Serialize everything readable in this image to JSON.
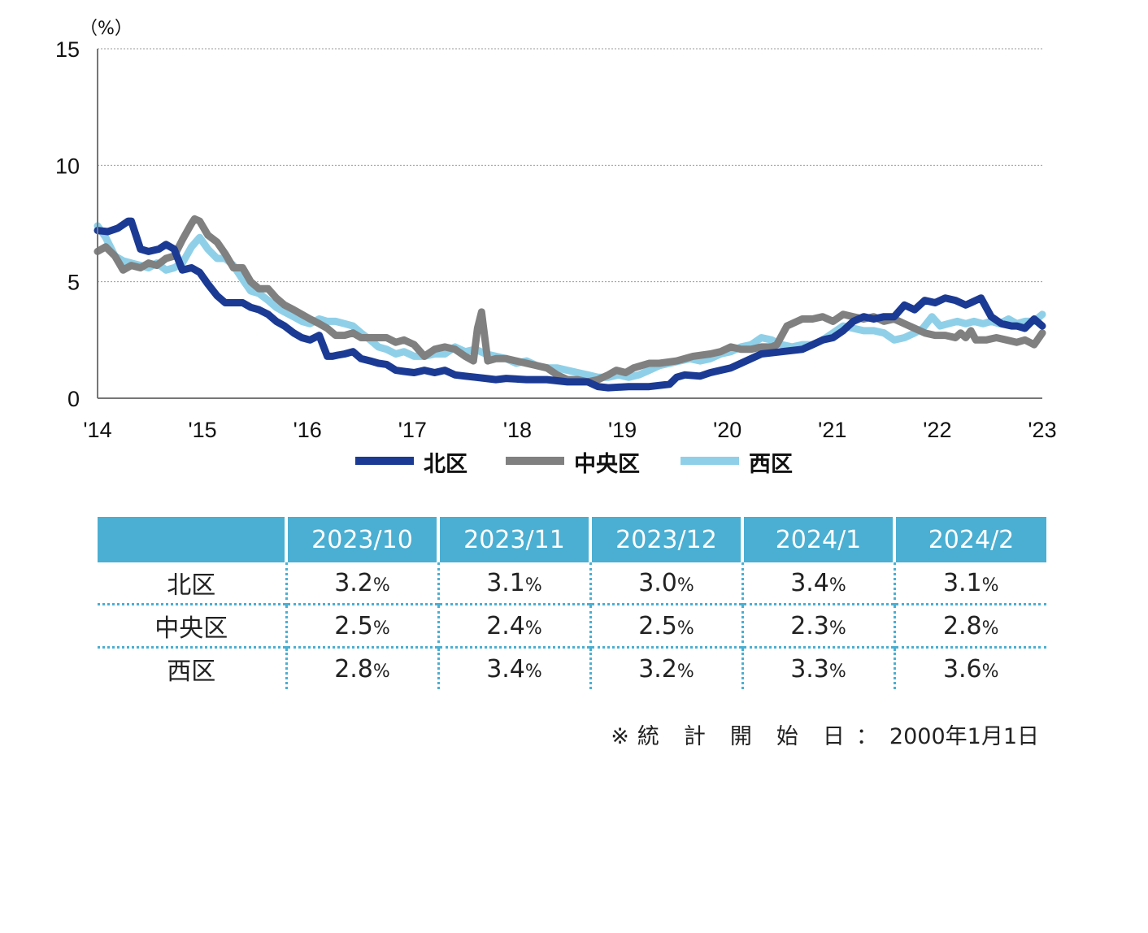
{
  "chart_data": {
    "type": "line",
    "title": "",
    "unit_label": "（%）",
    "ylim": [
      0,
      15
    ],
    "y_ticks": [
      0,
      5,
      10,
      15
    ],
    "x_tick_labels": [
      "'14",
      "'15",
      "'16",
      "'17",
      "'18",
      "'19",
      "'20",
      "'21",
      "'22",
      "'23"
    ],
    "x_start": 2014.0,
    "x_end": 2023.25,
    "gridlines": true,
    "legend_position": "bottom-center",
    "series": [
      {
        "name": "北区",
        "color": "#1b3a94",
        "x": [
          2014.0,
          2014.1,
          2014.2,
          2014.3,
          2014.33,
          2014.42,
          2014.5,
          2014.6,
          2014.67,
          2014.75,
          2014.83,
          2014.92,
          2015.0,
          2015.08,
          2015.17,
          2015.25,
          2015.33,
          2015.42,
          2015.5,
          2015.58,
          2015.67,
          2015.75,
          2015.83,
          2015.92,
          2016.0,
          2016.08,
          2016.17,
          2016.25,
          2016.3,
          2016.35,
          2016.42,
          2016.5,
          2016.58,
          2016.67,
          2016.75,
          2016.83,
          2016.92,
          2017.0,
          2017.1,
          2017.2,
          2017.3,
          2017.4,
          2017.5,
          2017.6,
          2017.7,
          2017.8,
          2017.9,
          2018.0,
          2018.2,
          2018.4,
          2018.6,
          2018.8,
          2018.9,
          2019.0,
          2019.2,
          2019.4,
          2019.6,
          2019.67,
          2019.75,
          2019.9,
          2020.0,
          2020.2,
          2020.3,
          2020.5,
          2020.7,
          2020.9,
          2021.0,
          2021.1,
          2021.2,
          2021.3,
          2021.4,
          2021.5,
          2021.6,
          2021.7,
          2021.8,
          2021.9,
          2022.0,
          2022.1,
          2022.2,
          2022.3,
          2022.4,
          2022.5,
          2022.55,
          2022.65,
          2022.75,
          2022.85,
          2022.95,
          2023.0,
          2023.08,
          2023.17,
          2023.25
        ],
        "values": [
          7.2,
          7.15,
          7.3,
          7.6,
          7.6,
          6.4,
          6.3,
          6.4,
          6.6,
          6.4,
          5.5,
          5.6,
          5.4,
          4.9,
          4.4,
          4.1,
          4.1,
          4.1,
          3.9,
          3.8,
          3.6,
          3.3,
          3.1,
          2.8,
          2.6,
          2.5,
          2.7,
          1.8,
          1.8,
          1.85,
          1.9,
          2.0,
          1.7,
          1.6,
          1.5,
          1.45,
          1.2,
          1.15,
          1.1,
          1.2,
          1.1,
          1.2,
          1.0,
          0.95,
          0.9,
          0.85,
          0.8,
          0.85,
          0.8,
          0.8,
          0.7,
          0.7,
          0.5,
          0.45,
          0.5,
          0.5,
          0.6,
          0.9,
          1.0,
          0.95,
          1.1,
          1.3,
          1.5,
          1.9,
          2.0,
          2.1,
          2.3,
          2.5,
          2.6,
          2.9,
          3.3,
          3.5,
          3.4,
          3.5,
          3.5,
          4.0,
          3.8,
          4.2,
          4.1,
          4.3,
          4.2,
          4.0,
          4.1,
          4.3,
          3.5,
          3.2,
          3.1,
          3.1,
          3.0,
          3.4,
          3.1
        ]
      },
      {
        "name": "中央区",
        "color": "#808080",
        "x": [
          2014.0,
          2014.08,
          2014.17,
          2014.25,
          2014.33,
          2014.42,
          2014.5,
          2014.58,
          2014.67,
          2014.75,
          2014.83,
          2014.92,
          2014.95,
          2015.0,
          2015.08,
          2015.17,
          2015.25,
          2015.33,
          2015.42,
          2015.5,
          2015.58,
          2015.67,
          2015.75,
          2015.83,
          2015.92,
          2016.0,
          2016.08,
          2016.17,
          2016.25,
          2016.33,
          2016.42,
          2016.5,
          2016.58,
          2016.67,
          2016.75,
          2016.83,
          2016.92,
          2017.0,
          2017.1,
          2017.2,
          2017.3,
          2017.4,
          2017.5,
          2017.6,
          2017.68,
          2017.72,
          2017.76,
          2017.82,
          2017.9,
          2018.0,
          2018.2,
          2018.3,
          2018.4,
          2018.5,
          2018.6,
          2018.7,
          2018.8,
          2018.9,
          2019.0,
          2019.08,
          2019.17,
          2019.25,
          2019.4,
          2019.5,
          2019.67,
          2019.83,
          2020.0,
          2020.1,
          2020.2,
          2020.3,
          2020.4,
          2020.5,
          2020.6,
          2020.65,
          2020.75,
          2020.9,
          2021.0,
          2021.1,
          2021.2,
          2021.3,
          2021.4,
          2021.5,
          2021.6,
          2021.7,
          2021.8,
          2021.9,
          2022.0,
          2022.1,
          2022.2,
          2022.3,
          2022.4,
          2022.45,
          2022.5,
          2022.55,
          2022.6,
          2022.7,
          2022.8,
          2022.9,
          2023.0,
          2023.08,
          2023.17,
          2023.25
        ],
        "values": [
          6.3,
          6.5,
          6.1,
          5.5,
          5.7,
          5.6,
          5.8,
          5.7,
          6.0,
          6.1,
          6.8,
          7.5,
          7.7,
          7.6,
          7.0,
          6.7,
          6.2,
          5.6,
          5.6,
          5.0,
          4.7,
          4.7,
          4.3,
          4.0,
          3.8,
          3.6,
          3.4,
          3.2,
          3.0,
          2.7,
          2.7,
          2.8,
          2.6,
          2.6,
          2.6,
          2.6,
          2.4,
          2.5,
          2.3,
          1.8,
          2.1,
          2.2,
          2.1,
          1.8,
          1.6,
          3.0,
          3.7,
          1.6,
          1.7,
          1.7,
          1.5,
          1.4,
          1.3,
          1.0,
          0.8,
          0.8,
          0.7,
          0.8,
          1.0,
          1.2,
          1.1,
          1.3,
          1.5,
          1.5,
          1.6,
          1.8,
          1.9,
          2.0,
          2.2,
          2.1,
          2.1,
          2.2,
          2.2,
          2.3,
          3.1,
          3.4,
          3.4,
          3.5,
          3.3,
          3.6,
          3.5,
          3.4,
          3.5,
          3.3,
          3.4,
          3.2,
          3.0,
          2.8,
          2.7,
          2.7,
          2.6,
          2.8,
          2.6,
          2.9,
          2.5,
          2.5,
          2.6,
          2.5,
          2.4,
          2.5,
          2.3,
          2.8
        ]
      },
      {
        "name": "西区",
        "color": "#8fd0e8",
        "x": [
          2014.0,
          2014.08,
          2014.17,
          2014.25,
          2014.33,
          2014.42,
          2014.5,
          2014.58,
          2014.67,
          2014.75,
          2014.83,
          2014.92,
          2015.0,
          2015.08,
          2015.17,
          2015.25,
          2015.33,
          2015.42,
          2015.5,
          2015.58,
          2015.67,
          2015.75,
          2015.83,
          2015.92,
          2016.0,
          2016.08,
          2016.17,
          2016.25,
          2016.33,
          2016.42,
          2016.5,
          2016.58,
          2016.67,
          2016.75,
          2016.83,
          2016.92,
          2017.0,
          2017.1,
          2017.2,
          2017.3,
          2017.4,
          2017.5,
          2017.6,
          2017.7,
          2017.8,
          2017.9,
          2018.0,
          2018.1,
          2018.2,
          2018.3,
          2018.4,
          2018.5,
          2018.6,
          2018.7,
          2018.8,
          2018.9,
          2019.0,
          2019.1,
          2019.2,
          2019.3,
          2019.4,
          2019.5,
          2019.6,
          2019.7,
          2019.8,
          2019.9,
          2020.0,
          2020.1,
          2020.2,
          2020.3,
          2020.4,
          2020.5,
          2020.6,
          2020.7,
          2020.8,
          2020.9,
          2021.0,
          2021.1,
          2021.2,
          2021.3,
          2021.4,
          2021.5,
          2021.6,
          2021.7,
          2021.8,
          2021.9,
          2022.0,
          2022.08,
          2022.17,
          2022.25,
          2022.33,
          2022.42,
          2022.5,
          2022.58,
          2022.67,
          2022.75,
          2022.83,
          2022.92,
          2023.0,
          2023.08,
          2023.17,
          2023.25
        ],
        "values": [
          7.4,
          6.9,
          6.1,
          5.9,
          5.8,
          5.7,
          5.6,
          5.8,
          5.5,
          5.6,
          5.8,
          6.5,
          6.9,
          6.4,
          6.0,
          6.0,
          5.7,
          5.1,
          4.6,
          4.5,
          4.2,
          3.9,
          3.7,
          3.5,
          3.3,
          3.2,
          3.4,
          3.3,
          3.3,
          3.2,
          3.1,
          2.8,
          2.5,
          2.2,
          2.1,
          1.9,
          2.0,
          1.8,
          1.8,
          1.9,
          1.9,
          2.2,
          2.0,
          2.1,
          1.9,
          1.8,
          1.7,
          1.5,
          1.6,
          1.4,
          1.3,
          1.3,
          1.2,
          1.1,
          1.0,
          0.9,
          0.9,
          1.0,
          0.9,
          1.0,
          1.2,
          1.4,
          1.5,
          1.6,
          1.7,
          1.6,
          1.7,
          1.9,
          2.0,
          2.2,
          2.3,
          2.6,
          2.5,
          2.3,
          2.2,
          2.3,
          2.3,
          2.5,
          2.8,
          3.1,
          3.0,
          2.9,
          2.9,
          2.8,
          2.5,
          2.6,
          2.8,
          3.0,
          3.5,
          3.1,
          3.2,
          3.3,
          3.2,
          3.3,
          3.2,
          3.3,
          3.2,
          3.4,
          3.2,
          3.3,
          3.3,
          3.6
        ]
      }
    ]
  },
  "table": {
    "headers": [
      "",
      "2023/10",
      "2023/11",
      "2023/12",
      "2024/1",
      "2024/2"
    ],
    "rows": [
      {
        "label": "北区",
        "values": [
          "3.2",
          "3.1",
          "3.0",
          "3.4",
          "3.1"
        ]
      },
      {
        "label": "中央区",
        "values": [
          "2.5",
          "2.4",
          "2.5",
          "2.3",
          "2.8"
        ]
      },
      {
        "label": "西区",
        "values": [
          "2.8",
          "3.4",
          "3.2",
          "3.3",
          "3.6"
        ]
      }
    ],
    "percent_sign": "%"
  },
  "footnote": {
    "mark": "※",
    "label": "統計開始日",
    "separator": "：",
    "value": "2000年1月1日"
  }
}
